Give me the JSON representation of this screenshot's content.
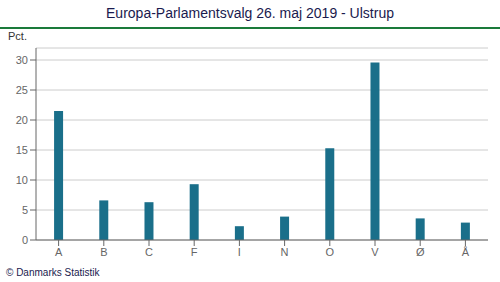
{
  "chart_data": {
    "type": "bar",
    "title": "Europa-Parlamentsvalg 26. maj 2019 - Ulstrup",
    "ylabel": "Pct.",
    "annotations": [
      "© Danmarks Statistik"
    ],
    "categories": [
      "A",
      "B",
      "C",
      "F",
      "I",
      "N",
      "O",
      "V",
      "Ø",
      "Å"
    ],
    "values": [
      21.5,
      6.6,
      6.3,
      9.3,
      2.3,
      3.9,
      15.3,
      29.6,
      3.6,
      2.9
    ],
    "color": "#1a6f8a",
    "ylim": [
      0,
      32
    ],
    "yticks": [
      0,
      5,
      10,
      15,
      20,
      25,
      30
    ],
    "grid": true
  }
}
